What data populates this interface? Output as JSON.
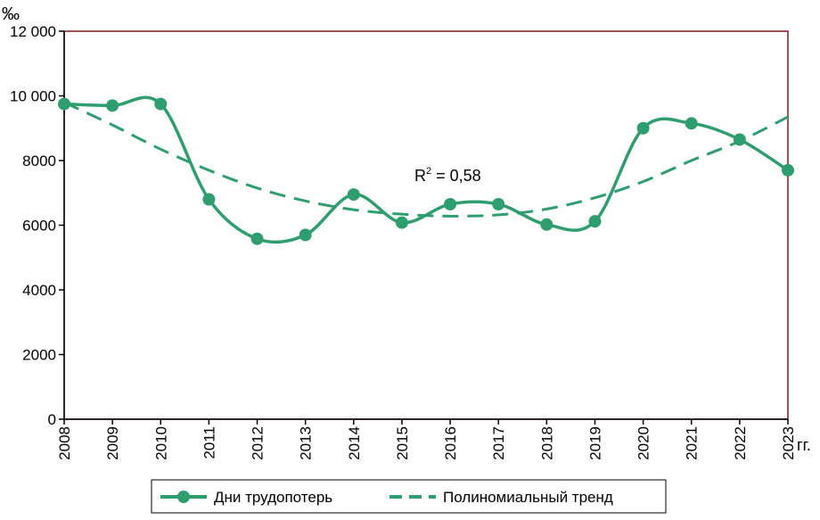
{
  "chart_data": {
    "type": "line",
    "y_unit_label": "‰",
    "x_unit_label": "гг.",
    "categories": [
      "2008",
      "2009",
      "2010",
      "2011",
      "2012",
      "2013",
      "2014",
      "2015",
      "2016",
      "2017",
      "2018",
      "2019",
      "2020",
      "2021",
      "2022",
      "2023"
    ],
    "ylim": [
      0,
      12000
    ],
    "y_ticks": [
      0,
      2000,
      4000,
      6000,
      8000,
      10000,
      12000
    ],
    "y_tick_labels": [
      "0",
      "2000",
      "4000",
      "6000",
      "8000",
      "10 000",
      "12 000"
    ],
    "grid": false,
    "legend_position": "bottom",
    "series": [
      {
        "name": "Дни трудопотерь",
        "style": "smooth-line-with-markers",
        "color": "#2e9e6e",
        "values": [
          9750,
          9700,
          9750,
          6800,
          5580,
          5700,
          6950,
          6080,
          6650,
          6650,
          6020,
          6120,
          9000,
          9150,
          8650,
          7700
        ]
      },
      {
        "name": "Полиномиальный тренд",
        "style": "dashed",
        "color": "#2e9e6e",
        "values": [
          9800,
          9100,
          8350,
          7700,
          7150,
          6750,
          6480,
          6340,
          6280,
          6320,
          6500,
          6850,
          7350,
          8000,
          8600,
          9350
        ]
      }
    ],
    "annotation": {
      "base": "R",
      "superscript": "2",
      "text": " = 0,58"
    }
  },
  "colors": {
    "frame": "#8b1a1a",
    "series": "#2e9e6e"
  }
}
